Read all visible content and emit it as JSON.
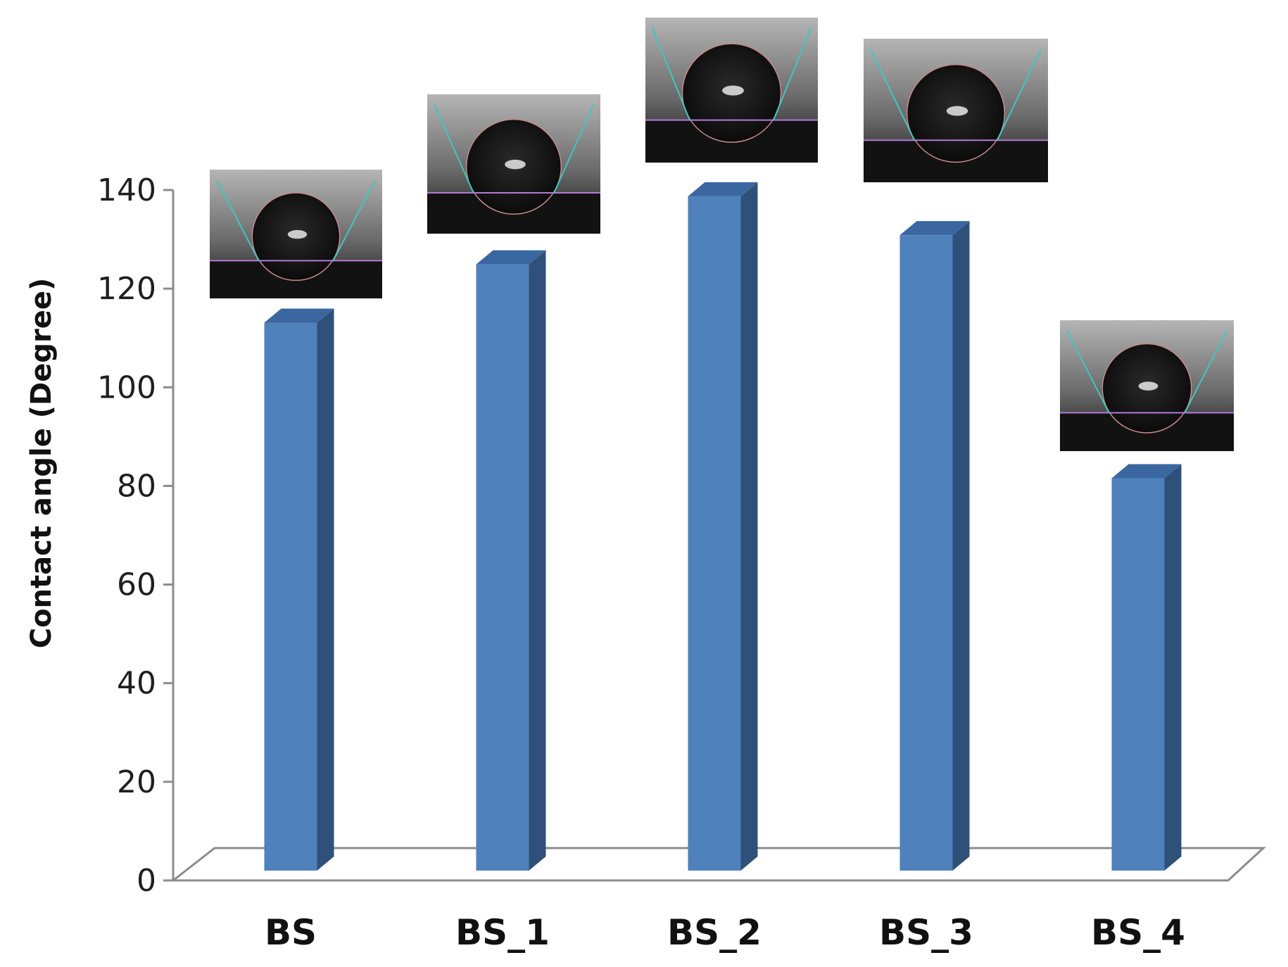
{
  "chart_data": {
    "type": "bar",
    "style": "3d-column",
    "title": "",
    "xlabel": "",
    "ylabel": "Contact angle  (Degree)",
    "ylim": [
      0,
      140
    ],
    "yticks": [
      0,
      20,
      40,
      60,
      80,
      100,
      120,
      140
    ],
    "grid": false,
    "legend": "none",
    "categories": [
      "BS",
      "BS_1",
      "BS_2",
      "BS_3",
      "BS_4"
    ],
    "values": [
      113,
      125,
      139,
      131,
      81
    ],
    "inset_images": "water droplet photograph above each bar",
    "colors": {
      "bar_front": "#4f81bd",
      "bar_side": "#2f5078",
      "bar_top": "#3b67a0",
      "axis": "#8c8c8c"
    }
  }
}
